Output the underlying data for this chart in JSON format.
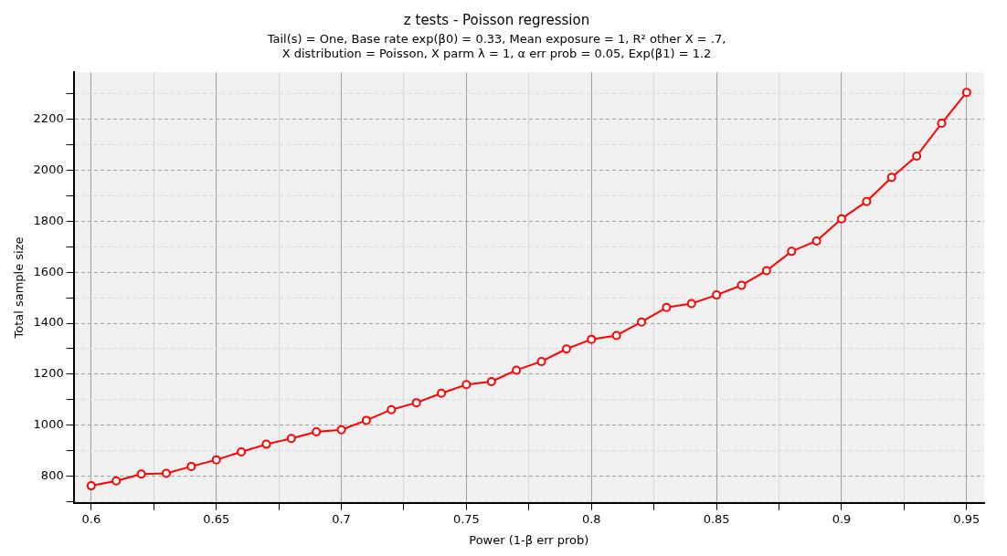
{
  "chart_data": {
    "type": "line",
    "title": "z tests - Poisson regression",
    "subtitle": "Tail(s) = One, Base rate exp(β0) = 0.33, Mean exposure = 1, R² other X = .7,\nX distribution = Poisson, X parm λ = 1, α err prob = 0.05, Exp(β1) = 1.2",
    "xlabel": "Power (1-β err prob)",
    "ylabel": "Total sample size",
    "x": [
      0.6,
      0.61,
      0.62,
      0.63,
      0.64,
      0.65,
      0.66,
      0.67,
      0.68,
      0.69,
      0.7,
      0.71,
      0.72,
      0.73,
      0.74,
      0.75,
      0.76,
      0.77,
      0.78,
      0.79,
      0.8,
      0.81,
      0.82,
      0.83,
      0.84,
      0.85,
      0.86,
      0.87,
      0.88,
      0.89,
      0.9,
      0.91,
      0.92,
      0.93,
      0.94,
      0.95
    ],
    "series": [
      {
        "color": "#ff0000",
        "values": [
          762,
          781,
          808,
          811,
          838,
          864,
          895,
          925,
          948,
          974,
          982,
          1019,
          1061,
          1088,
          1125,
          1159,
          1171,
          1216,
          1250,
          1299,
          1337,
          1352,
          1405,
          1462,
          1477,
          1511,
          1549,
          1606,
          1682,
          1723,
          1810,
          1878,
          1973,
          2056,
          2185,
          2306
        ]
      }
    ],
    "xlim": [
      0.593,
      0.957
    ],
    "xticks": [
      0.6,
      {
        "value": 0.625,
        "label": null
      },
      0.65,
      {
        "value": 0.675,
        "label": null
      },
      0.7,
      {
        "value": 0.725,
        "label": null
      },
      0.75,
      {
        "value": 0.775,
        "label": null
      },
      0.8,
      {
        "value": 0.825,
        "label": null
      },
      0.85,
      {
        "value": 0.875,
        "label": null
      },
      0.9,
      {
        "value": 0.925,
        "label": null
      },
      0.95
    ],
    "ylim": [
      695,
      2385
    ],
    "yticks": [
      {
        "value": 700,
        "label": null
      },
      800,
      {
        "value": 900,
        "label": null
      },
      1000,
      {
        "value": 1100,
        "label": null
      },
      1200,
      {
        "value": 1300,
        "label": null
      },
      1400,
      {
        "value": 1500,
        "label": null
      },
      1600,
      {
        "value": 1700,
        "label": null
      },
      1800,
      {
        "value": 1900,
        "label": null
      },
      2000,
      {
        "value": 2100,
        "label": null
      },
      2200,
      {
        "value": 2300,
        "label": null
      }
    ],
    "grid": true,
    "legend": false,
    "marker": "circle",
    "line_style": "solid"
  }
}
